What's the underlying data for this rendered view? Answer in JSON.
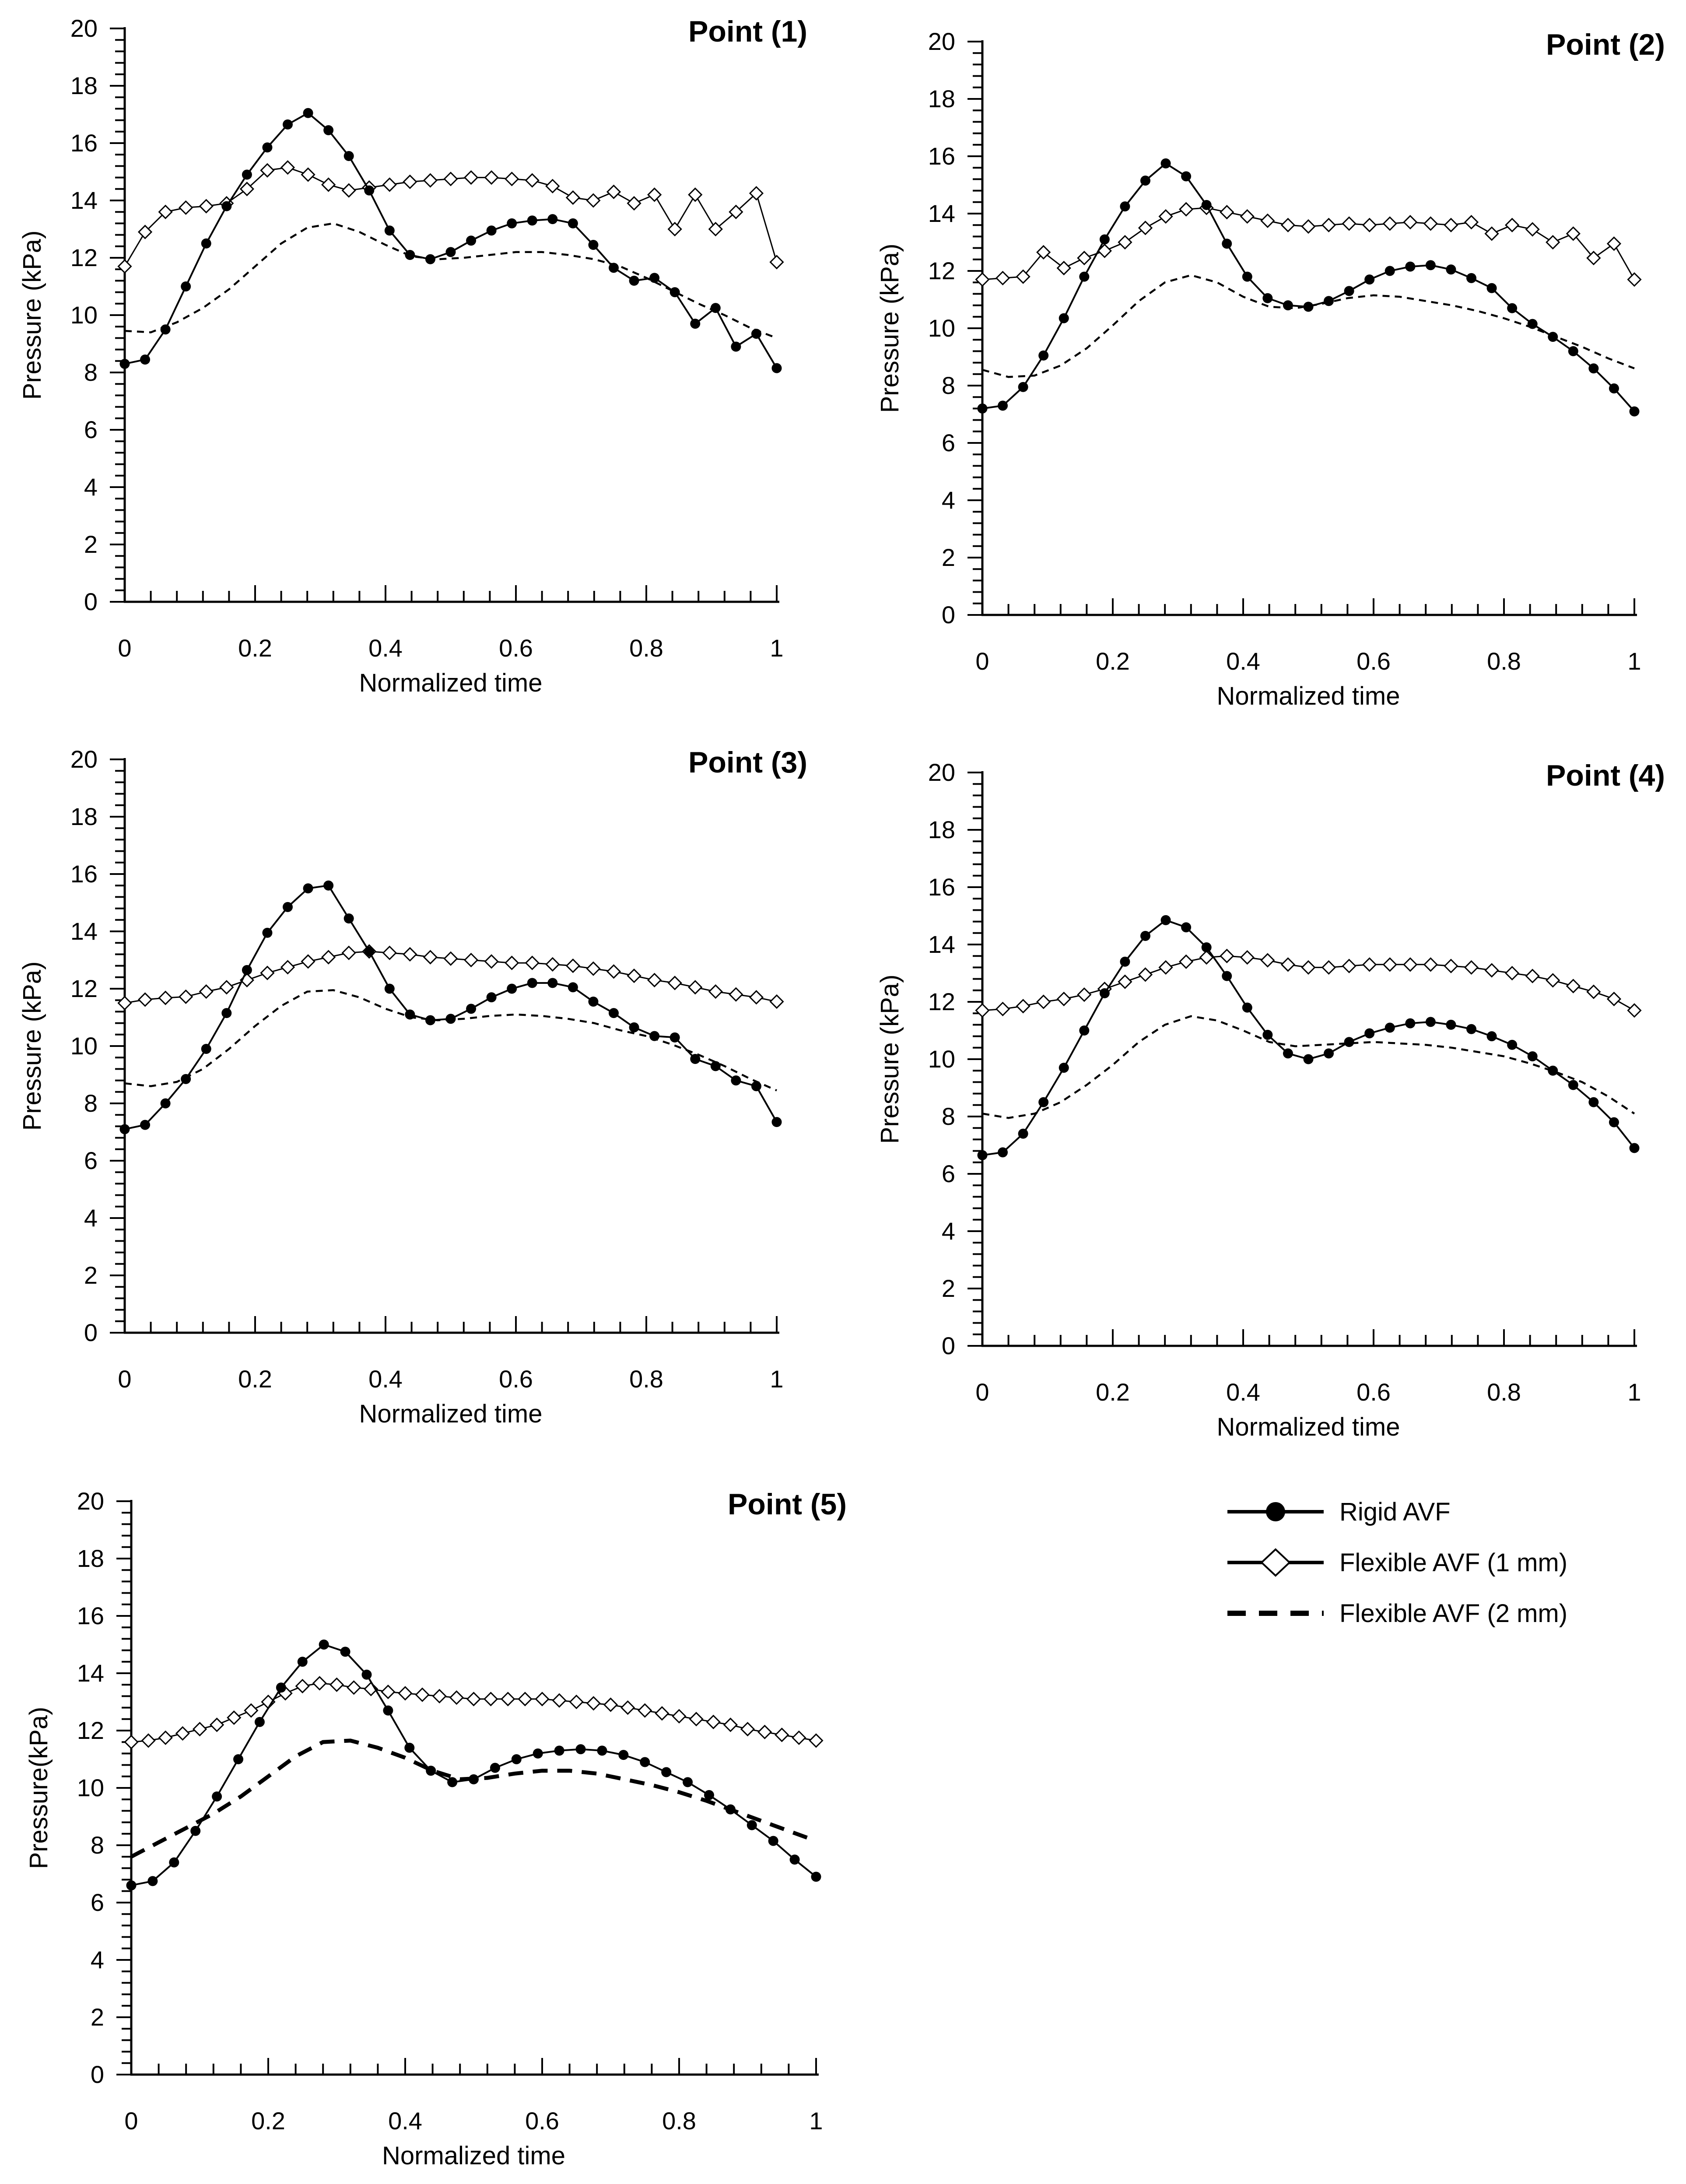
{
  "figure": {
    "background": "#ffffff",
    "foreground": "#000000",
    "description": "Pressure waveforms over one normalized cardiac cycle at five monitoring points"
  },
  "legend": {
    "items": [
      {
        "label": "Rigid AVF",
        "marker": "filled-circle",
        "line": "solid"
      },
      {
        "label": "Flexible AVF (1 mm)",
        "marker": "open-diamond",
        "line": "solid"
      },
      {
        "label": "Flexible AVF (2 mm)",
        "marker": "none",
        "line": "dashed"
      }
    ]
  },
  "chart_data": [
    {
      "type": "line",
      "title": "Point (1)",
      "xlabel": "Normalized time",
      "ylabel": "Pressure (kPa)",
      "xlim": [
        0,
        1
      ],
      "ylim": [
        0,
        20
      ],
      "xtick_values": [
        0,
        0.2,
        0.4,
        0.6,
        0.8,
        1
      ],
      "xtick_labels": [
        "0",
        "0.2",
        "0.4",
        "0.6",
        "0.8",
        "1"
      ],
      "ytick_values": [
        0,
        2,
        4,
        6,
        8,
        10,
        12,
        14,
        16,
        18,
        20
      ],
      "ytick_labels": [
        "0",
        "2",
        "4",
        "6",
        "8",
        "10",
        "12",
        "14",
        "16",
        "18",
        "20"
      ],
      "minor_x_step": 0.04,
      "minor_y_step": 0.4,
      "grid": false,
      "series": [
        {
          "name": "Rigid AVF",
          "marker": "filled-circle",
          "line": "solid",
          "values": [
            8.3,
            8.45,
            9.5,
            11.0,
            12.5,
            13.8,
            14.9,
            15.85,
            16.65,
            17.05,
            16.45,
            15.55,
            14.35,
            12.95,
            12.1,
            11.95,
            12.2,
            12.6,
            12.95,
            13.2,
            13.3,
            13.35,
            13.2,
            12.45,
            11.65,
            11.2,
            11.3,
            10.8,
            9.7,
            10.25,
            8.9,
            9.35,
            8.15
          ]
        },
        {
          "name": "Flexible AVF (1 mm)",
          "marker": "open-diamond",
          "line": "solid",
          "values": [
            11.7,
            12.9,
            13.6,
            13.75,
            13.8,
            13.9,
            14.4,
            15.05,
            15.15,
            14.9,
            14.55,
            14.35,
            14.45,
            14.55,
            14.65,
            14.7,
            14.75,
            14.8,
            14.8,
            14.75,
            14.7,
            14.5,
            14.1,
            14.0,
            14.3,
            13.9,
            14.2,
            13.0,
            14.2,
            13.0,
            13.6,
            14.25,
            11.85
          ]
        },
        {
          "name": "Flexible AVF (2 mm)",
          "marker": "none",
          "line": "dashed",
          "values": [
            9.45,
            9.4,
            9.75,
            10.25,
            10.9,
            11.7,
            12.5,
            13.05,
            13.2,
            12.9,
            12.45,
            12.05,
            11.95,
            12.0,
            12.1,
            12.2,
            12.2,
            12.1,
            11.95,
            11.7,
            11.3,
            10.85,
            10.4,
            10.0,
            9.55,
            9.2
          ]
        }
      ]
    },
    {
      "type": "line",
      "title": "Point (2)",
      "xlabel": "Normalized time",
      "ylabel": "Pressure (kPa)",
      "xlim": [
        0,
        1
      ],
      "ylim": [
        0,
        20
      ],
      "xtick_values": [
        0,
        0.2,
        0.4,
        0.6,
        0.8,
        1
      ],
      "xtick_labels": [
        "0",
        "0.2",
        "0.4",
        "0.6",
        "0.8",
        "1"
      ],
      "ytick_values": [
        0,
        2,
        4,
        6,
        8,
        10,
        12,
        14,
        16,
        18,
        20
      ],
      "ytick_labels": [
        "0",
        "2",
        "4",
        "6",
        "8",
        "10",
        "12",
        "14",
        "16",
        "18",
        "20"
      ],
      "minor_x_step": 0.04,
      "minor_y_step": 0.4,
      "grid": false,
      "series": [
        {
          "name": "Rigid AVF",
          "marker": "filled-circle",
          "line": "solid",
          "values": [
            7.2,
            7.3,
            7.95,
            9.05,
            10.35,
            11.8,
            13.1,
            14.25,
            15.15,
            15.75,
            15.3,
            14.3,
            12.95,
            11.8,
            11.05,
            10.8,
            10.75,
            10.95,
            11.3,
            11.7,
            12.0,
            12.15,
            12.2,
            12.05,
            11.75,
            11.4,
            10.7,
            10.15,
            9.7,
            9.2,
            8.6,
            7.9,
            7.1
          ]
        },
        {
          "name": "Flexible AVF (1 mm)",
          "marker": "open-diamond",
          "line": "solid",
          "values": [
            11.7,
            11.75,
            11.8,
            12.65,
            12.1,
            12.45,
            12.7,
            13.0,
            13.5,
            13.9,
            14.15,
            14.2,
            14.05,
            13.9,
            13.75,
            13.6,
            13.55,
            13.6,
            13.65,
            13.6,
            13.65,
            13.7,
            13.65,
            13.6,
            13.7,
            13.3,
            13.6,
            13.45,
            13.0,
            13.3,
            12.45,
            12.95,
            11.7
          ]
        },
        {
          "name": "Flexible AVF (2 mm)",
          "marker": "none",
          "line": "dashed",
          "values": [
            8.55,
            8.3,
            8.35,
            8.7,
            9.3,
            10.1,
            10.95,
            11.6,
            11.85,
            11.6,
            11.1,
            10.75,
            10.7,
            10.85,
            11.05,
            11.15,
            11.1,
            10.95,
            10.8,
            10.6,
            10.35,
            10.05,
            9.7,
            9.35,
            8.95,
            8.6
          ]
        }
      ]
    },
    {
      "type": "line",
      "title": "Point (3)",
      "xlabel": "Normalized time",
      "ylabel": "Pressure (kPa)",
      "xlim": [
        0,
        1
      ],
      "ylim": [
        0,
        20
      ],
      "xtick_values": [
        0,
        0.2,
        0.4,
        0.6,
        0.8,
        1
      ],
      "xtick_labels": [
        "0",
        "0.2",
        "0.4",
        "0.6",
        "0.8",
        "1"
      ],
      "ytick_values": [
        0,
        2,
        4,
        6,
        8,
        10,
        12,
        14,
        16,
        18,
        20
      ],
      "ytick_labels": [
        "0",
        "2",
        "4",
        "6",
        "8",
        "10",
        "12",
        "14",
        "16",
        "18",
        "20"
      ],
      "minor_x_step": 0.04,
      "minor_y_step": 0.4,
      "grid": false,
      "series": [
        {
          "name": "Rigid AVF",
          "marker": "filled-circle",
          "line": "solid",
          "values": [
            7.1,
            7.25,
            8.0,
            8.85,
            9.9,
            11.15,
            12.65,
            13.95,
            14.85,
            15.5,
            15.6,
            14.45,
            13.3,
            12.0,
            11.1,
            10.9,
            10.95,
            11.3,
            11.7,
            12.0,
            12.2,
            12.2,
            12.05,
            11.55,
            11.15,
            10.65,
            10.35,
            10.3,
            9.55,
            9.3,
            8.8,
            8.6,
            7.35
          ]
        },
        {
          "name": "Flexible AVF (1 mm)",
          "marker": "open-diamond",
          "line": "solid",
          "values": [
            11.5,
            11.62,
            11.68,
            11.72,
            11.9,
            12.05,
            12.3,
            12.55,
            12.75,
            12.95,
            13.1,
            13.25,
            13.3,
            13.25,
            13.2,
            13.1,
            13.05,
            13.0,
            12.95,
            12.9,
            12.9,
            12.85,
            12.8,
            12.7,
            12.6,
            12.45,
            12.3,
            12.2,
            12.05,
            11.9,
            11.8,
            11.7,
            11.55
          ]
        },
        {
          "name": "Flexible AVF (2 mm)",
          "marker": "none",
          "line": "dashed",
          "values": [
            8.7,
            8.6,
            8.75,
            9.2,
            9.9,
            10.7,
            11.4,
            11.9,
            11.95,
            11.7,
            11.3,
            11.0,
            10.9,
            10.95,
            11.05,
            11.1,
            11.05,
            10.95,
            10.8,
            10.55,
            10.35,
            10.05,
            9.7,
            9.3,
            8.85,
            8.45
          ]
        }
      ]
    },
    {
      "type": "line",
      "title": "Point (4)",
      "xlabel": "Normalized time",
      "ylabel": "Pressure (kPa)",
      "xlim": [
        0,
        1
      ],
      "ylim": [
        0,
        20
      ],
      "xtick_values": [
        0,
        0.2,
        0.4,
        0.6,
        0.8,
        1
      ],
      "xtick_labels": [
        "0",
        "0.2",
        "0.4",
        "0.6",
        "0.8",
        "1"
      ],
      "ytick_values": [
        0,
        2,
        4,
        6,
        8,
        10,
        12,
        14,
        16,
        18,
        20
      ],
      "ytick_labels": [
        "0",
        "2",
        "4",
        "6",
        "8",
        "10",
        "12",
        "14",
        "16",
        "18",
        "20"
      ],
      "minor_x_step": 0.04,
      "minor_y_step": 0.4,
      "grid": false,
      "series": [
        {
          "name": "Rigid AVF",
          "marker": "filled-circle",
          "line": "solid",
          "values": [
            6.65,
            6.75,
            7.4,
            8.5,
            9.7,
            11.0,
            12.3,
            13.4,
            14.3,
            14.85,
            14.6,
            13.9,
            12.9,
            11.8,
            10.85,
            10.2,
            10.0,
            10.2,
            10.6,
            10.9,
            11.1,
            11.25,
            11.3,
            11.2,
            11.05,
            10.8,
            10.5,
            10.1,
            9.6,
            9.1,
            8.5,
            7.8,
            6.9
          ]
        },
        {
          "name": "Flexible AVF (1 mm)",
          "marker": "open-diamond",
          "line": "solid",
          "values": [
            11.7,
            11.75,
            11.85,
            12.0,
            12.1,
            12.25,
            12.45,
            12.7,
            12.95,
            13.2,
            13.4,
            13.55,
            13.6,
            13.55,
            13.45,
            13.3,
            13.2,
            13.2,
            13.25,
            13.3,
            13.3,
            13.3,
            13.3,
            13.25,
            13.2,
            13.1,
            13.0,
            12.9,
            12.75,
            12.55,
            12.35,
            12.1,
            11.7
          ]
        },
        {
          "name": "Flexible AVF (2 mm)",
          "marker": "none",
          "line": "dashed",
          "values": [
            8.1,
            7.95,
            8.1,
            8.5,
            9.1,
            9.8,
            10.6,
            11.2,
            11.5,
            11.35,
            11.0,
            10.6,
            10.45,
            10.5,
            10.55,
            10.6,
            10.55,
            10.5,
            10.4,
            10.25,
            10.1,
            9.85,
            9.55,
            9.2,
            8.7,
            8.1
          ]
        }
      ]
    },
    {
      "type": "line",
      "title": "Point (5)",
      "xlabel": "Normalized time",
      "ylabel": "Pressure(kPa)",
      "xlim": [
        0,
        1
      ],
      "ylim": [
        0,
        20
      ],
      "xtick_values": [
        0,
        0.2,
        0.4,
        0.6,
        0.8,
        1
      ],
      "xtick_labels": [
        "0",
        "0.2",
        "0.4",
        "0.6",
        "0.8",
        "1"
      ],
      "ytick_values": [
        0,
        2,
        4,
        6,
        8,
        10,
        12,
        14,
        16,
        18,
        20
      ],
      "ytick_labels": [
        "0",
        "2",
        "4",
        "6",
        "8",
        "10",
        "12",
        "14",
        "16",
        "18",
        "20"
      ],
      "minor_x_step": 0.04,
      "minor_y_step": 0.4,
      "grid": false,
      "series": [
        {
          "name": "Rigid AVF",
          "marker": "filled-circle",
          "line": "solid",
          "values": [
            6.6,
            6.75,
            7.4,
            8.5,
            9.7,
            11.0,
            12.3,
            13.5,
            14.4,
            15.0,
            14.75,
            13.95,
            12.7,
            11.4,
            10.6,
            10.2,
            10.3,
            10.7,
            11.0,
            11.2,
            11.3,
            11.35,
            11.3,
            11.15,
            10.9,
            10.55,
            10.2,
            9.75,
            9.25,
            8.7,
            8.15,
            7.5,
            6.9
          ]
        },
        {
          "name": "Flexible AVF (1 mm)",
          "marker": "open-diamond",
          "line": "solid",
          "values": [
            11.6,
            11.65,
            11.75,
            11.9,
            12.05,
            12.2,
            12.45,
            12.7,
            13.0,
            13.3,
            13.55,
            13.65,
            13.6,
            13.5,
            13.45,
            13.35,
            13.3,
            13.25,
            13.2,
            13.15,
            13.1,
            13.1,
            13.1,
            13.1,
            13.1,
            13.05,
            13.0,
            12.95,
            12.9,
            12.8,
            12.7,
            12.6,
            12.5,
            12.4,
            12.3,
            12.2,
            12.05,
            11.95,
            11.85,
            11.75,
            11.65
          ]
        },
        {
          "name": "Flexible AVF (2 mm)",
          "marker": "none",
          "line": "dashed",
          "emphasis": "thick",
          "values": [
            7.6,
            8.1,
            8.6,
            9.1,
            9.7,
            10.4,
            11.1,
            11.6,
            11.65,
            11.4,
            11.05,
            10.6,
            10.3,
            10.35,
            10.5,
            10.6,
            10.6,
            10.5,
            10.3,
            10.1,
            9.85,
            9.55,
            9.2,
            8.85,
            8.5,
            8.15
          ]
        }
      ]
    }
  ]
}
